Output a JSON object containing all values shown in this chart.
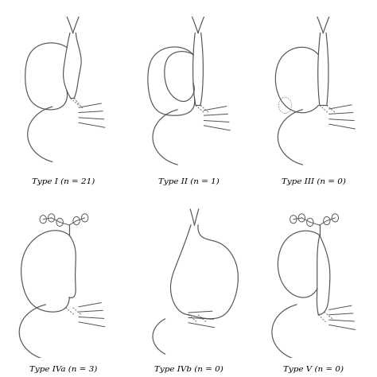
{
  "labels": [
    "Type I (n = 21)",
    "Type II (n = 1)",
    "Type III (n = 0)",
    "Type IVa (n = 3)",
    "Type IVb (n = 0)",
    "Type V (n = 0)"
  ],
  "background_color": "#ffffff",
  "text_color": "#000000",
  "label_fontsize": 7.5,
  "figure_width": 4.74,
  "figure_height": 4.74,
  "dpi": 100,
  "line_color": "#555555",
  "line_width": 0.85
}
